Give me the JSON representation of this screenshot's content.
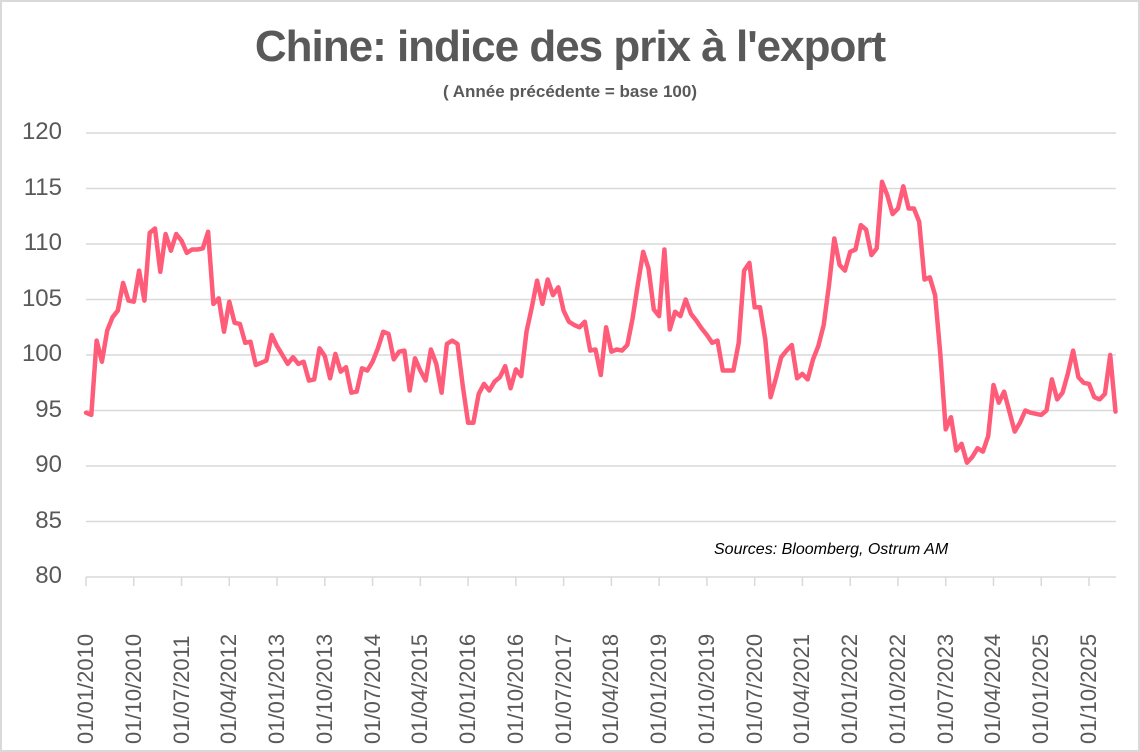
{
  "chart_data": {
    "type": "line",
    "title": "Chine: indice des prix à l'export",
    "subtitle": "( Année précédente = base 100)",
    "xlabel": "",
    "ylabel": "",
    "ylim": [
      80,
      120
    ],
    "yticks": [
      120,
      115,
      110,
      105,
      100,
      95,
      90,
      85,
      80
    ],
    "xtick_labels": [
      "01/01/2010",
      "01/10/2010",
      "01/07/2011",
      "01/04/2012",
      "01/01/2013",
      "01/10/2013",
      "01/07/2014",
      "01/04/2015",
      "01/01/2016",
      "01/10/2016",
      "01/07/2017",
      "01/04/2018",
      "01/01/2019",
      "01/10/2019",
      "01/07/2020",
      "01/04/2021",
      "01/01/2022",
      "01/10/2022",
      "01/07/2023",
      "01/04/2024",
      "01/01/2025",
      "01/10/2025"
    ],
    "grid": true,
    "legend": null,
    "annotation": "Sources: Bloomberg, Ostrum AM",
    "series": [
      {
        "name": "Indice des prix à l'export (Chine)",
        "color": "#ff5c7a",
        "frequency": "monthly",
        "start": "2010-01",
        "values": [
          94.8,
          94.6,
          101.3,
          99.4,
          102.2,
          103.4,
          104.0,
          106.5,
          104.9,
          104.8,
          107.6,
          104.9,
          111.0,
          111.4,
          107.5,
          110.9,
          109.4,
          110.9,
          110.3,
          109.2,
          109.5,
          109.5,
          109.6,
          111.1,
          104.6,
          105.1,
          102.1,
          104.8,
          102.9,
          102.8,
          101.1,
          101.2,
          99.1,
          99.3,
          99.5,
          101.8,
          100.8,
          100.0,
          99.2,
          99.8,
          99.2,
          99.4,
          97.7,
          97.8,
          100.6,
          99.9,
          97.9,
          100.1,
          98.5,
          98.9,
          96.6,
          96.7,
          98.8,
          98.6,
          99.4,
          100.6,
          102.1,
          101.9,
          99.6,
          100.3,
          100.4,
          96.8,
          99.7,
          98.6,
          97.7,
          100.5,
          99.2,
          96.6,
          101.0,
          101.3,
          101.0,
          97.2,
          93.9,
          93.9,
          96.5,
          97.4,
          96.8,
          97.6,
          98.0,
          99.0,
          97.0,
          98.7,
          98.1,
          102.1,
          104.3,
          106.7,
          104.6,
          106.8,
          105.4,
          106.1,
          104.0,
          103.0,
          102.7,
          102.5,
          103.0,
          100.4,
          100.5,
          98.2,
          102.5,
          100.3,
          100.5,
          100.4,
          100.9,
          103.3,
          106.4,
          109.3,
          107.8,
          104.1,
          103.5,
          109.5,
          102.3,
          103.9,
          103.5,
          105.0,
          103.7,
          103.1,
          102.4,
          101.8,
          101.1,
          101.3,
          98.6,
          98.6,
          98.6,
          101.1,
          107.6,
          108.3,
          104.3,
          104.3,
          101.4,
          96.2,
          97.9,
          99.8,
          100.4,
          100.9,
          97.9,
          98.3,
          97.8,
          99.6,
          100.8,
          102.7,
          106.3,
          110.5,
          108.1,
          107.6,
          109.3,
          109.5,
          111.7,
          111.3,
          109.0,
          109.6,
          115.6,
          114.4,
          112.7,
          113.2,
          115.2,
          113.2,
          113.2,
          112.0,
          106.8,
          107.0,
          105.4,
          100.0,
          93.3,
          94.4,
          91.4,
          92.0,
          90.3,
          90.8,
          91.6,
          91.3,
          92.7,
          97.3,
          95.7,
          96.7,
          94.9,
          93.1,
          93.9,
          95.0,
          94.8,
          94.7,
          94.6,
          95.0,
          97.8,
          96.0,
          96.6,
          98.3,
          100.4,
          98.0,
          97.5,
          97.4,
          96.2,
          96.0,
          96.5,
          100.0,
          94.9
        ]
      }
    ]
  }
}
